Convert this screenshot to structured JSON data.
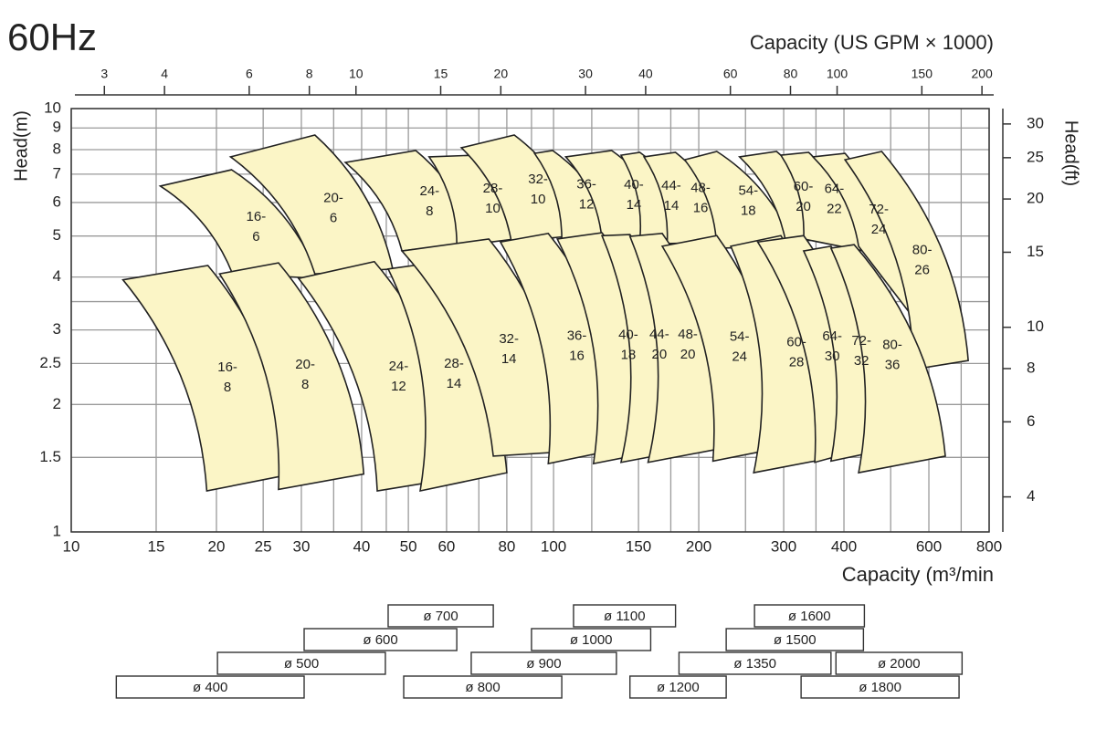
{
  "chart_data": {
    "type": "selection",
    "title": "60Hz",
    "x_label": "Capacity (m³/min",
    "y_label": "Head(m)",
    "x2_label": "Capacity (US GPM × 1000)",
    "y2_label": "Head(ft)",
    "log_x": true,
    "log_y": true,
    "grid": true,
    "region_color": "#fbf5c6",
    "xlim": [
      10,
      800
    ],
    "xticks": [
      10,
      15,
      20,
      25,
      30,
      40,
      50,
      60,
      80,
      100,
      150,
      200,
      300,
      400,
      600,
      800
    ],
    "x_minor_grid": [
      35,
      45,
      70,
      90,
      120,
      175,
      250,
      350,
      500,
      700
    ],
    "ylim": [
      1,
      10
    ],
    "yticks": [
      1,
      1.5,
      2,
      2.5,
      3,
      4,
      5,
      6,
      7,
      8,
      9,
      10
    ],
    "y_minor_grid": [
      3.5
    ],
    "x2lim": [
      2.56,
      207
    ],
    "x2ticks": [
      3,
      4,
      6,
      8,
      10,
      15,
      20,
      30,
      40,
      60,
      80,
      100,
      150,
      200
    ],
    "y2lim": [
      3.31,
      32.6
    ],
    "y2ticks": [
      4,
      6,
      8,
      10,
      15,
      20,
      25,
      30
    ],
    "regions": [
      {
        "label": [
          "16-",
          "6"
        ],
        "corners": [
          [
            15.3,
            6.56
          ],
          [
            21.5,
            7.17
          ],
          [
            32.7,
            3.97
          ],
          [
            21.6,
            4.07
          ]
        ]
      },
      {
        "label": [
          "20-",
          "6"
        ],
        "corners": [
          [
            21.4,
            7.69
          ],
          [
            32.0,
            8.66
          ],
          [
            46.4,
            4.18
          ],
          [
            32.0,
            4.07
          ]
        ]
      },
      {
        "label": [
          "24-",
          "8"
        ],
        "corners": [
          [
            37.0,
            7.46
          ],
          [
            51.8,
            7.96
          ],
          [
            68.7,
            4.84
          ],
          [
            48.5,
            4.61
          ]
        ]
      },
      {
        "label": [
          "28-",
          "10"
        ],
        "corners": [
          [
            55.2,
            7.69
          ],
          [
            68.7,
            7.76
          ],
          [
            89.3,
            4.97
          ],
          [
            63.0,
            4.73
          ]
        ]
      },
      {
        "label": [
          "32-",
          "10"
        ],
        "corners": [
          [
            64.4,
            8.08
          ],
          [
            82.9,
            8.66
          ],
          [
            116,
            5.04
          ],
          [
            81.8,
            4.84
          ]
        ]
      },
      {
        "label": [
          "36-",
          "12"
        ],
        "corners": [
          [
            91.3,
            7.84
          ],
          [
            99.6,
            7.96
          ],
          [
            135,
            5.01
          ],
          [
            104,
            4.92
          ]
        ]
      },
      {
        "label": [
          "40-",
          "14"
        ],
        "corners": [
          [
            106,
            7.69
          ],
          [
            132,
            7.96
          ],
          [
            179,
            5.01
          ],
          [
            126,
            4.92
          ]
        ]
      },
      {
        "label": [
          "44-",
          "14"
        ],
        "corners": [
          [
            138,
            7.76
          ],
          [
            151,
            7.88
          ],
          [
            205,
            4.92
          ],
          [
            151,
            4.92
          ]
        ]
      },
      {
        "label": [
          "48-",
          "16"
        ],
        "corners": [
          [
            154,
            7.69
          ],
          [
            179,
            7.88
          ],
          [
            238,
            4.84
          ],
          [
            172,
            4.8
          ]
        ]
      },
      {
        "label": [
          "54-",
          "18"
        ],
        "corners": [
          [
            187,
            7.57
          ],
          [
            218,
            7.92
          ],
          [
            316,
            4.73
          ],
          [
            218,
            4.68
          ]
        ]
      },
      {
        "label": [
          "60-",
          "20"
        ],
        "corners": [
          [
            243,
            7.69
          ],
          [
            290,
            7.92
          ],
          [
            376,
            4.92
          ],
          [
            303,
            4.84
          ]
        ]
      },
      {
        "label": [
          "64-",
          "22"
        ],
        "corners": [
          [
            296,
            7.76
          ],
          [
            338,
            7.88
          ],
          [
            439,
            4.61
          ],
          [
            330,
            4.92
          ]
        ]
      },
      {
        "label": [
          "72-",
          "24"
        ],
        "corners": [
          [
            345,
            7.69
          ],
          [
            402,
            7.84
          ],
          [
            570,
            3.1
          ],
          [
            429,
            4.73
          ]
        ]
      },
      {
        "label": [
          "80-",
          "26"
        ],
        "corners": [
          [
            402,
            7.57
          ],
          [
            479,
            7.92
          ],
          [
            724,
            2.54
          ],
          [
            557,
            2.42
          ]
        ]
      },
      {
        "label": [
          "16-",
          "8"
        ],
        "corners": [
          [
            12.8,
            3.94
          ],
          [
            19.2,
            4.26
          ],
          [
            28.7,
            1.37
          ],
          [
            19.1,
            1.25
          ]
        ]
      },
      {
        "label": [
          "20-",
          "8"
        ],
        "corners": [
          [
            20.3,
            4.07
          ],
          [
            26.9,
            4.32
          ],
          [
            40.4,
            1.37
          ],
          [
            26.9,
            1.26
          ]
        ]
      },
      {
        "label": [
          "24-",
          "12"
        ],
        "corners": [
          [
            29.6,
            3.97
          ],
          [
            42.5,
            4.35
          ],
          [
            65.2,
            1.35
          ],
          [
            43.1,
            1.25
          ]
        ]
      },
      {
        "label": [
          "28-",
          "14"
        ],
        "corners": [
          [
            45.4,
            4.18
          ],
          [
            52.9,
            4.28
          ],
          [
            80.0,
            1.38
          ],
          [
            52.9,
            1.25
          ]
        ]
      },
      {
        "label": [
          "32-",
          "14"
        ],
        "corners": [
          [
            48.5,
            4.61
          ],
          [
            73.4,
            4.92
          ],
          [
            108.7,
            1.55
          ],
          [
            75.0,
            1.51
          ]
        ]
      },
      {
        "label": [
          "36-",
          "16"
        ],
        "corners": [
          [
            77.6,
            4.84
          ],
          [
            97.5,
            5.07
          ],
          [
            144,
            1.59
          ],
          [
            97.5,
            1.45
          ]
        ]
      },
      {
        "label": [
          "40-",
          "18"
        ],
        "corners": [
          [
            101.8,
            4.92
          ],
          [
            126,
            5.09
          ],
          [
            183,
            1.59
          ],
          [
            121,
            1.45
          ]
        ]
      },
      {
        "label": [
          "44-",
          "20"
        ],
        "corners": [
          [
            126,
            5.01
          ],
          [
            144,
            5.04
          ],
          [
            205,
            1.59
          ],
          [
            138,
            1.46
          ]
        ]
      },
      {
        "label": [
          "48-",
          "20"
        ],
        "corners": [
          [
            144,
            4.99
          ],
          [
            168,
            5.07
          ],
          [
            233,
            1.59
          ],
          [
            157,
            1.46
          ]
        ]
      },
      {
        "label": [
          "54-",
          "24"
        ],
        "corners": [
          [
            168,
            4.73
          ],
          [
            218,
            5.01
          ],
          [
            303,
            1.59
          ],
          [
            214,
            1.47
          ]
        ]
      },
      {
        "label": [
          "60-",
          "28"
        ],
        "corners": [
          [
            233,
            4.73
          ],
          [
            296,
            5.01
          ],
          [
            393,
            1.51
          ],
          [
            260,
            1.38
          ]
        ]
      },
      {
        "label": [
          "64-",
          "30"
        ],
        "corners": [
          [
            265,
            4.84
          ],
          [
            330,
            5.01
          ],
          [
            458,
            1.59
          ],
          [
            348,
            1.46
          ]
        ]
      },
      {
        "label": [
          "72-",
          "32"
        ],
        "corners": [
          [
            330,
            4.61
          ],
          [
            376,
            4.73
          ],
          [
            522,
            1.59
          ],
          [
            376,
            1.47
          ]
        ]
      },
      {
        "label": [
          "80-",
          "36"
        ],
        "corners": [
          [
            376,
            4.68
          ],
          [
            420,
            4.77
          ],
          [
            649,
            1.51
          ],
          [
            429,
            1.38
          ]
        ]
      }
    ],
    "diameter_rows": [
      [
        {
          "label": "ø 700",
          "range": [
            45.4,
            75.0
          ]
        },
        {
          "label": "ø 1100",
          "range": [
            110,
            179
          ]
        },
        {
          "label": "ø 1600",
          "range": [
            261,
            441
          ]
        }
      ],
      [
        {
          "label": "ø 600",
          "range": [
            30.4,
            63.0
          ]
        },
        {
          "label": "ø 1000",
          "range": [
            90.0,
            159
          ]
        },
        {
          "label": "ø 1500",
          "range": [
            228,
            439
          ]
        }
      ],
      [
        {
          "label": "ø 500",
          "range": [
            20.1,
            44.8
          ]
        },
        {
          "label": "ø 900",
          "range": [
            67.5,
            135
          ]
        },
        {
          "label": "ø 1350",
          "range": [
            182,
            376
          ]
        },
        {
          "label": "ø 2000",
          "range": [
            385,
            703
          ]
        }
      ],
      [
        {
          "label": "ø 400",
          "range": [
            12.4,
            30.4
          ]
        },
        {
          "label": "ø 800",
          "range": [
            48.9,
            104
          ]
        },
        {
          "label": "ø 1200",
          "range": [
            144,
            228
          ]
        },
        {
          "label": "ø 1800",
          "range": [
            326,
            693
          ]
        }
      ]
    ]
  }
}
